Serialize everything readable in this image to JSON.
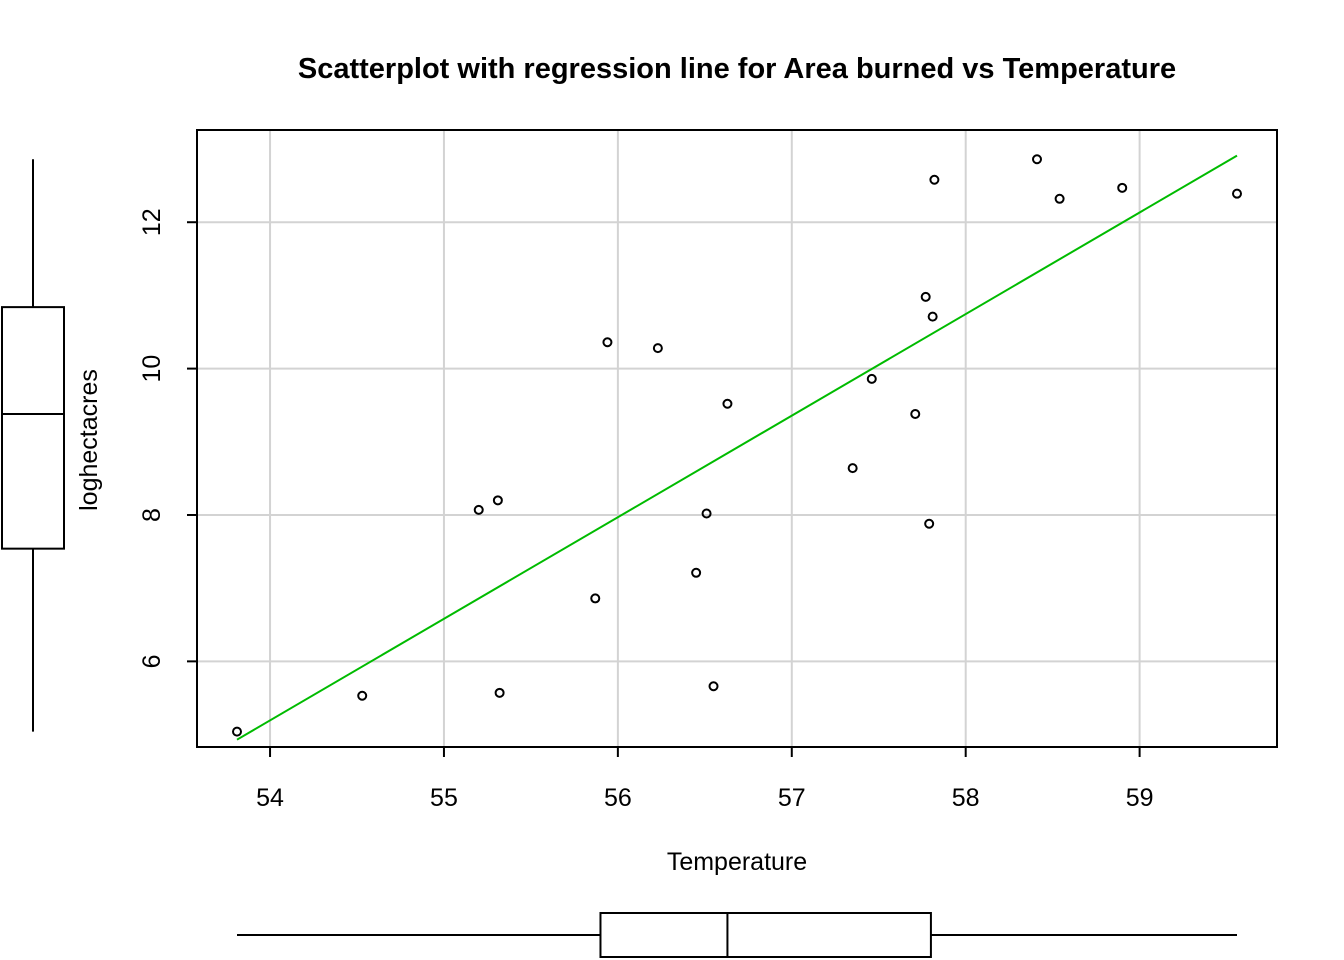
{
  "chart_data": {
    "type": "scatter",
    "title": "Scatterplot with regression line for Area burned vs Temperature",
    "xlabel": "Temperature",
    "ylabel": "loghectacres",
    "xlim": [
      53.58,
      59.79
    ],
    "ylim": [
      4.83,
      13.26
    ],
    "x_ticks": [
      54,
      55,
      56,
      57,
      58,
      59
    ],
    "y_ticks": [
      6,
      8,
      10,
      12
    ],
    "grid": true,
    "colors": {
      "points": "#000000",
      "regression_line": "#00bb00",
      "grid": "#d3d3d3"
    },
    "points": [
      {
        "x": 53.81,
        "y": 5.04
      },
      {
        "x": 54.53,
        "y": 5.53
      },
      {
        "x": 55.2,
        "y": 8.07
      },
      {
        "x": 55.31,
        "y": 8.2
      },
      {
        "x": 55.32,
        "y": 5.57
      },
      {
        "x": 55.87,
        "y": 6.86
      },
      {
        "x": 55.94,
        "y": 10.36
      },
      {
        "x": 56.23,
        "y": 10.28
      },
      {
        "x": 56.45,
        "y": 7.21
      },
      {
        "x": 56.51,
        "y": 8.02
      },
      {
        "x": 56.55,
        "y": 5.66
      },
      {
        "x": 56.63,
        "y": 9.52
      },
      {
        "x": 57.35,
        "y": 8.64
      },
      {
        "x": 57.46,
        "y": 9.86
      },
      {
        "x": 57.71,
        "y": 9.38
      },
      {
        "x": 57.77,
        "y": 10.98
      },
      {
        "x": 57.79,
        "y": 7.88
      },
      {
        "x": 57.81,
        "y": 10.71
      },
      {
        "x": 57.82,
        "y": 12.58
      },
      {
        "x": 58.41,
        "y": 12.86
      },
      {
        "x": 58.54,
        "y": 12.32
      },
      {
        "x": 58.9,
        "y": 12.47
      },
      {
        "x": 59.56,
        "y": 12.39
      }
    ],
    "regression_line": {
      "x": [
        53.81,
        59.56
      ],
      "y": [
        4.93,
        12.91
      ]
    },
    "boxplot_x": {
      "min": 53.81,
      "q1": 55.9,
      "median": 56.63,
      "q3": 57.8,
      "max": 59.56
    },
    "boxplot_y": {
      "min": 5.04,
      "q1": 7.54,
      "median": 9.38,
      "q3": 10.84,
      "max": 12.86
    }
  }
}
